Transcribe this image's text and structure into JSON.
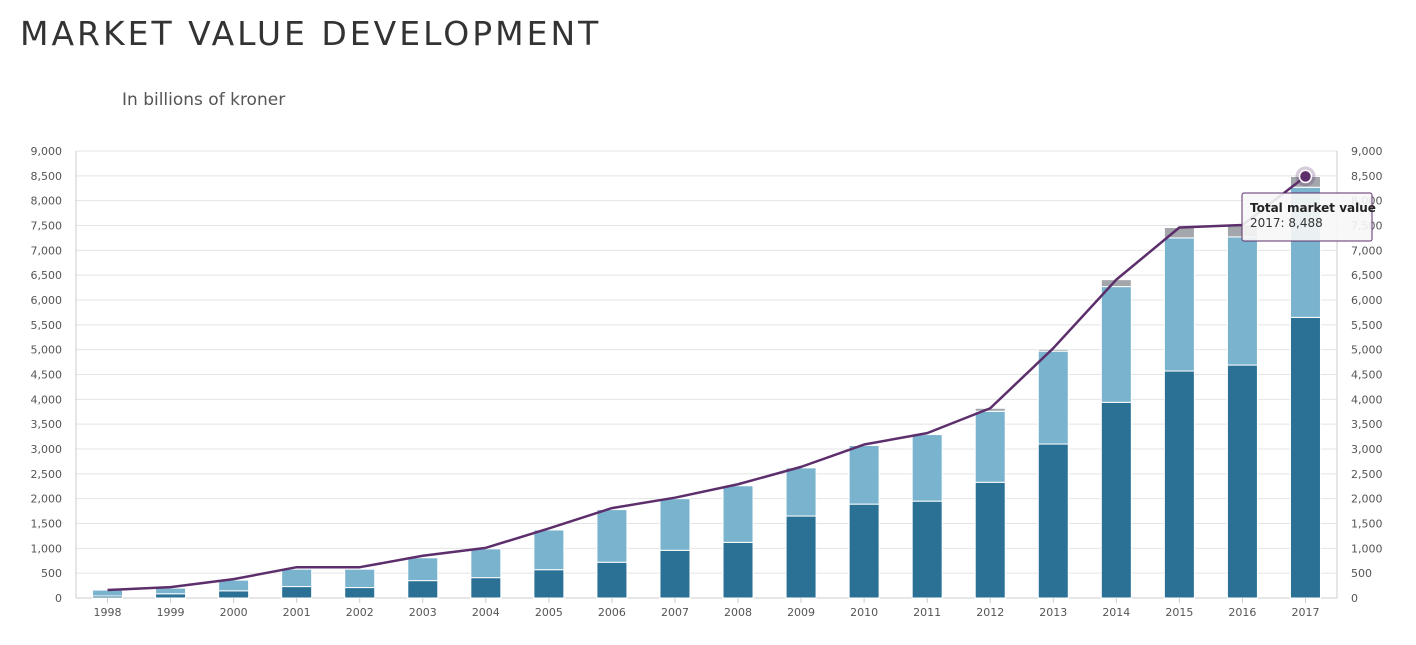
{
  "header": {
    "title": "MARKET VALUE DEVELOPMENT",
    "subtitle": "In billions of kroner"
  },
  "colors": {
    "dark_bar": "#2b7196",
    "light_bar": "#7ab3cd",
    "gray_bar": "#a3a7ab",
    "line": "#5c2e6b",
    "grid": "#e4e4e4"
  },
  "chart_data": {
    "type": "bar",
    "stacked": true,
    "categories": [
      "1998",
      "1999",
      "2000",
      "2001",
      "2002",
      "2003",
      "2004",
      "2005",
      "2006",
      "2007",
      "2008",
      "2009",
      "2010",
      "2011",
      "2012",
      "2013",
      "2014",
      "2015",
      "2016",
      "2017"
    ],
    "series": [
      {
        "values": [
          40,
          85,
          145,
          230,
          210,
          350,
          410,
          570,
          720,
          960,
          1120,
          1650,
          1890,
          1950,
          2330,
          3100,
          3940,
          4570,
          4690,
          5650
        ],
        "color": "#2b7196"
      },
      {
        "values": [
          120,
          115,
          215,
          350,
          370,
          460,
          580,
          800,
          1060,
          1040,
          1140,
          970,
          1180,
          1340,
          1430,
          1870,
          2330,
          2680,
          2580,
          2620
        ],
        "color": "#7ab3cd"
      },
      {
        "values": [
          0,
          0,
          0,
          0,
          0,
          0,
          0,
          0,
          0,
          0,
          0,
          0,
          0,
          0,
          60,
          40,
          140,
          210,
          240,
          218
        ],
        "color": "#a3a7ab"
      }
    ],
    "line": {
      "name": "Total market value",
      "values": [
        160,
        220,
        380,
        620,
        620,
        850,
        1010,
        1400,
        1810,
        2020,
        2290,
        2640,
        3090,
        3320,
        3820,
        5030,
        6410,
        7460,
        7510,
        8488
      ],
      "color": "#5c2e6b"
    },
    "ylim": [
      0,
      9000
    ],
    "yticks": [
      "0",
      "500",
      "1,000",
      "1,500",
      "2,000",
      "2,500",
      "3,000",
      "3,500",
      "4,000",
      "4,500",
      "5,000",
      "5,500",
      "6,000",
      "6,500",
      "7,000",
      "7,500",
      "8,000",
      "8,500",
      "9,000"
    ],
    "xlabel": "",
    "ylabel": "",
    "grid": true,
    "tooltip": {
      "title": "Total market value",
      "text": "2017: 8,488"
    }
  }
}
